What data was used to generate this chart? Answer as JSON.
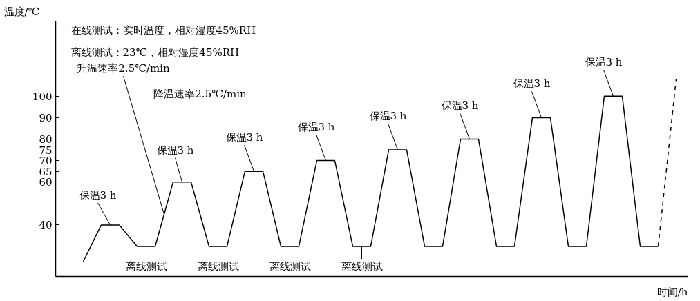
{
  "chart_data": {
    "type": "line",
    "xlabel": "时间/h",
    "ylabel": "温度/℃",
    "categories": [
      null,
      null,
      null,
      null,
      null,
      null,
      null,
      null,
      null,
      null,
      null,
      null,
      null,
      null,
      null,
      null,
      null,
      null,
      null,
      null,
      null,
      null,
      null,
      null,
      null,
      null,
      null,
      null,
      null,
      null,
      null,
      null,
      null,
      null
    ],
    "ylim": [
      16,
      135
    ],
    "yticks": [
      40,
      60,
      65,
      70,
      75,
      80,
      90,
      100
    ],
    "tick_labels": "y",
    "grid": false,
    "series": [
      {
        "color": "#000000",
        "line_style": "solid",
        "values": [
          23,
          40,
          40,
          30,
          30,
          60,
          60,
          30,
          30,
          65,
          65,
          30,
          30,
          70,
          70,
          30,
          30,
          75,
          75,
          30,
          30,
          80,
          80,
          30,
          30,
          90,
          90,
          30,
          30,
          100,
          100,
          30,
          30,
          null
        ]
      },
      {
        "color": "#000000",
        "line_style": "dashed",
        "values": [
          null,
          null,
          null,
          null,
          null,
          null,
          null,
          null,
          null,
          null,
          null,
          null,
          null,
          null,
          null,
          null,
          null,
          null,
          null,
          null,
          null,
          null,
          null,
          null,
          null,
          null,
          null,
          null,
          null,
          null,
          null,
          null,
          30,
          108
        ]
      }
    ],
    "annotations": [
      "在线测试：实时温度，相对湿度45%RH",
      "离线测试：23℃，相对湿度45%RH",
      "升温速率2.5℃/min",
      "降温速率2.5℃/min",
      "保温3 h",
      "保温3 h",
      "保温3 h",
      "保温3 h",
      "保温3 h",
      "保温3 h",
      "保温3 h",
      "保温3 h",
      "离线测试",
      "离线测试",
      "离线测试",
      "离线测试"
    ]
  }
}
